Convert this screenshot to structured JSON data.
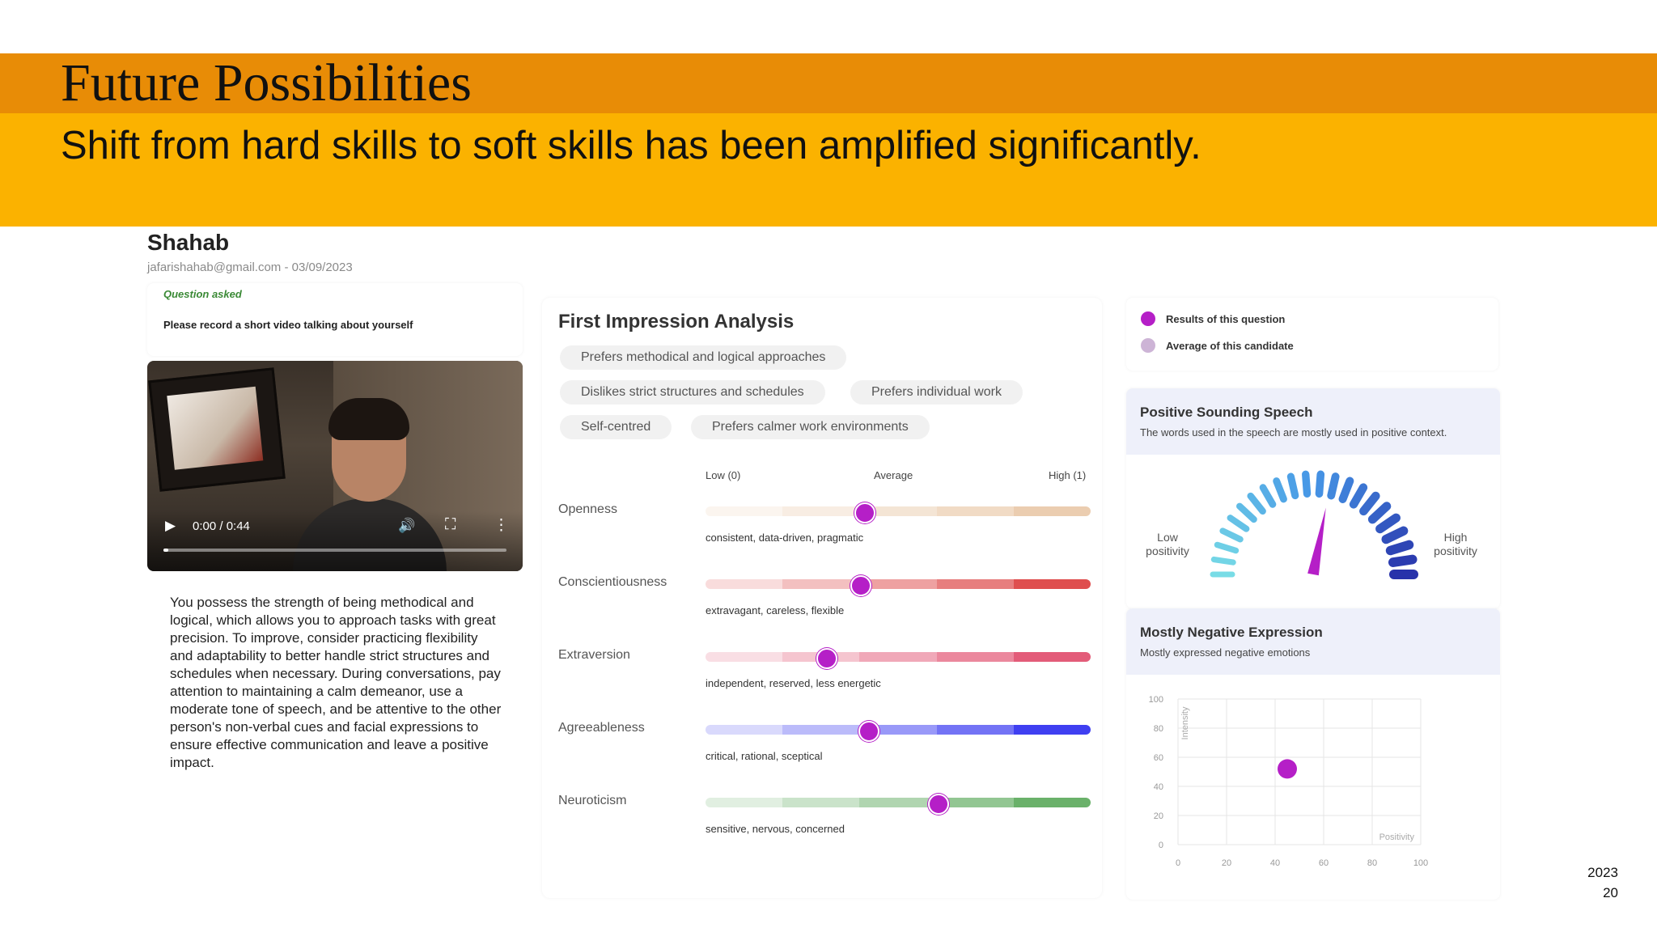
{
  "slide": {
    "title": "Future Possibilities",
    "subtitle": "Shift from hard skills to soft skills has been amplified significantly.",
    "year": "2023",
    "page_number": "20",
    "colors": {
      "title_band": "#e88c06",
      "subtitle_band": "#fbb200"
    }
  },
  "candidate": {
    "name": "Shahab",
    "meta": "jafarishahab@gmail.com - 03/09/2023",
    "question_label": "Question asked",
    "question": "Please record a short video talking about yourself",
    "video": {
      "time": "0:00 / 0:44",
      "progress": 0
    },
    "summary": "You possess the strength of being methodical and logical, which allows you to approach tasks with great precision. To improve, consider practicing flexibility and adaptability to better handle strict structures and schedules when necessary. During conversations, pay attention to maintaining a calm demeanor, use a moderate tone of speech, and be attentive to the other person's non-verbal cues and facial expressions to ensure effective communication and leave a positive impact."
  },
  "first_impression": {
    "title": "First Impression Analysis",
    "chips": [
      "Prefers methodical and logical approaches",
      "Dislikes strict structures and schedules",
      "Prefers individual work",
      "Self-centred",
      "Prefers calmer work environments"
    ],
    "scale": {
      "low": "Low (0)",
      "avg": "Average",
      "high": "High (1)"
    },
    "traits": [
      {
        "name": "Openness",
        "value": 0.41,
        "desc": "consistent, data-driven, pragmatic",
        "color": "#e9c8a7"
      },
      {
        "name": "Conscientiousness",
        "value": 0.4,
        "desc": "extravagant, careless, flexible",
        "color": "#db3b3b"
      },
      {
        "name": "Extraversion",
        "value": 0.31,
        "desc": "independent, reserved, less energetic",
        "color": "#e04a6a"
      },
      {
        "name": "Agreeableness",
        "value": 0.42,
        "desc": "critical, rational, sceptical",
        "color": "#2a2af0"
      },
      {
        "name": "Neuroticism",
        "value": 0.6,
        "desc": "sensitive, nervous, concerned",
        "color": "#5aa85a"
      }
    ]
  },
  "legend": {
    "items": [
      {
        "label": "Results of this question",
        "color": "#b51fc7"
      },
      {
        "label": "Average of this candidate",
        "color": "#cdb4d6"
      }
    ]
  },
  "positive_speech": {
    "title": "Positive Sounding Speech",
    "subtitle": "The words used in the speech are mostly used in positive context.",
    "low_label_1": "Low",
    "low_label_2": "positivity",
    "high_label_1": "High",
    "high_label_2": "positivity",
    "needle_value": 0.56
  },
  "negative_expression": {
    "title": "Mostly Negative Expression",
    "subtitle": "Mostly expressed negative emotions"
  },
  "chart_data": {
    "type": "scatter",
    "xlabel": "Positivity",
    "ylabel": "Intensity",
    "xlim": [
      0,
      100
    ],
    "ylim": [
      0,
      100
    ],
    "x_ticks": [
      "0",
      "20",
      "40",
      "60",
      "80",
      "100"
    ],
    "y_ticks": [
      "100",
      "80",
      "60",
      "40",
      "20",
      "0"
    ],
    "points": [
      {
        "x": 45,
        "y": 52
      }
    ],
    "point_color": "#b51fc7",
    "grid": true
  }
}
